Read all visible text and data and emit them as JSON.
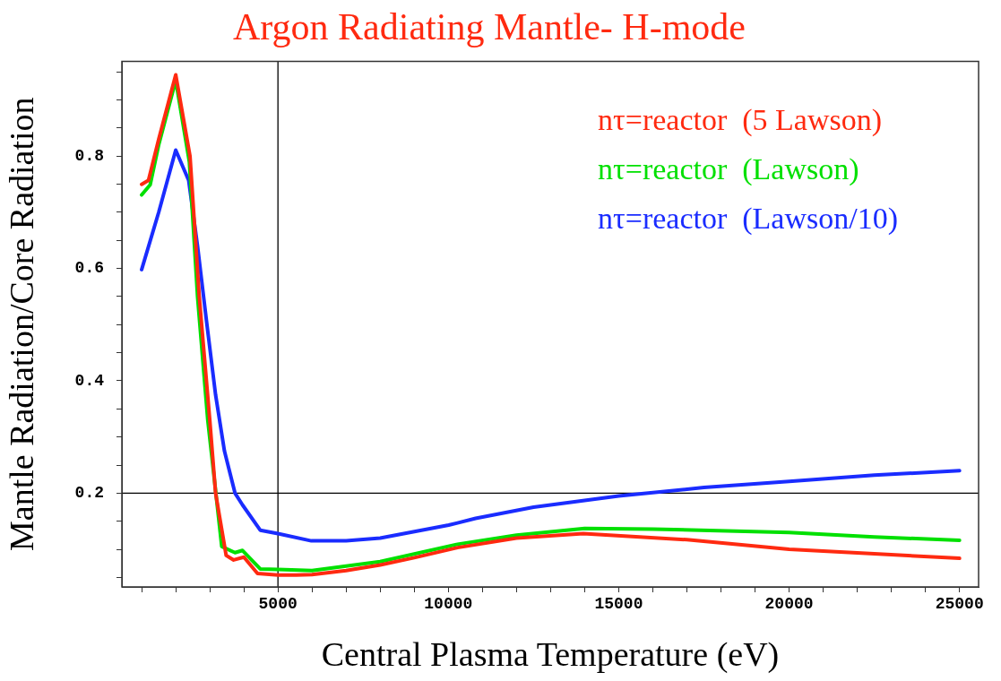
{
  "chart_data": {
    "type": "line",
    "title": "Argon Radiating Mantle- H-mode",
    "xlabel": "Central Plasma Temperature (eV)",
    "ylabel": "Mantle Radiation/Core Radiation",
    "xlim": [
      420,
      25560
    ],
    "ylim": [
      0.033,
      0.969
    ],
    "xticks": [
      {
        "value": 1000,
        "label": null
      },
      {
        "value": 2000,
        "label": null
      },
      {
        "value": 3000,
        "label": null
      },
      {
        "value": 4000,
        "label": null
      },
      5000,
      {
        "value": 6000,
        "label": null
      },
      {
        "value": 7000,
        "label": null
      },
      {
        "value": 8000,
        "label": null
      },
      {
        "value": 9000,
        "label": null
      },
      10000,
      {
        "value": 11000,
        "label": null
      },
      {
        "value": 12000,
        "label": null
      },
      {
        "value": 13000,
        "label": null
      },
      {
        "value": 14000,
        "label": null
      },
      15000,
      {
        "value": 16000,
        "label": null
      },
      {
        "value": 17000,
        "label": null
      },
      {
        "value": 18000,
        "label": null
      },
      {
        "value": 19000,
        "label": null
      },
      20000,
      {
        "value": 21000,
        "label": null
      },
      {
        "value": 22000,
        "label": null
      },
      {
        "value": 23000,
        "label": null
      },
      {
        "value": 24000,
        "label": null
      },
      25000
    ],
    "yticks": [
      {
        "value": 0.05,
        "label": null
      },
      {
        "value": 0.1,
        "label": null
      },
      {
        "value": 0.15,
        "label": null
      },
      0.2,
      {
        "value": 0.25,
        "label": null
      },
      {
        "value": 0.3,
        "label": null
      },
      {
        "value": 0.35,
        "label": null
      },
      0.4,
      {
        "value": 0.45,
        "label": null
      },
      {
        "value": 0.5,
        "label": null
      },
      {
        "value": 0.55,
        "label": null
      },
      0.6,
      {
        "value": 0.65,
        "label": null
      },
      {
        "value": 0.7,
        "label": null
      },
      {
        "value": 0.75,
        "label": null
      },
      0.8,
      {
        "value": 0.85,
        "label": null
      },
      {
        "value": 0.9,
        "label": null
      },
      {
        "value": 0.95,
        "label": null
      }
    ],
    "grid": false,
    "legend": "top right",
    "marker": "none",
    "line_style": "solid",
    "ref_lines": [
      {
        "axis": "x",
        "value": 5000,
        "color": "#000000"
      },
      {
        "axis": "y",
        "value": 0.2,
        "color": "#000000"
      }
    ],
    "series": [
      {
        "name": "nτ=reactor  (5 Lawson)",
        "color": "#ff2a10",
        "x": [
          1000,
          1200,
          1500,
          2000,
          2420,
          2690,
          3000,
          3170,
          3480,
          3700,
          4000,
          4400,
          5000,
          5540,
          6000,
          7000,
          8000,
          9000,
          10270,
          12000,
          13960,
          17000,
          20000,
          22500,
          25000
        ],
        "values": [
          0.75,
          0.757,
          0.83,
          0.945,
          0.8,
          0.55,
          0.33,
          0.2,
          0.089,
          0.081,
          0.086,
          0.057,
          0.054,
          0.054,
          0.055,
          0.062,
          0.072,
          0.085,
          0.103,
          0.12,
          0.128,
          0.117,
          0.1,
          0.092,
          0.084
        ]
      },
      {
        "name": "nτ=reactor  (Lawson)",
        "color": "#00e000",
        "x": [
          1000,
          1250,
          1500,
          2000,
          2400,
          2640,
          2940,
          3160,
          3350,
          3740,
          3960,
          4480,
          5000,
          6000,
          8000,
          10270,
          12000,
          14000,
          16000,
          20000,
          22500,
          25000
        ],
        "values": [
          0.731,
          0.749,
          0.82,
          0.935,
          0.79,
          0.55,
          0.33,
          0.21,
          0.105,
          0.094,
          0.098,
          0.065,
          0.064,
          0.062,
          0.078,
          0.109,
          0.125,
          0.137,
          0.136,
          0.13,
          0.122,
          0.116
        ]
      },
      {
        "name": "nτ=reactor  (Lawson/10)",
        "color": "#1a2cff",
        "x": [
          1000,
          1500,
          2000,
          2380,
          2640,
          2900,
          3170,
          3430,
          3740,
          3960,
          4480,
          5000,
          5980,
          7000,
          8000,
          10010,
          10800,
          12500,
          15000,
          17500,
          20000,
          22500,
          25000
        ],
        "values": [
          0.598,
          0.7,
          0.811,
          0.757,
          0.64,
          0.508,
          0.375,
          0.275,
          0.2,
          0.179,
          0.134,
          0.128,
          0.115,
          0.115,
          0.12,
          0.143,
          0.155,
          0.175,
          0.195,
          0.21,
          0.221,
          0.232,
          0.24
        ]
      }
    ]
  }
}
